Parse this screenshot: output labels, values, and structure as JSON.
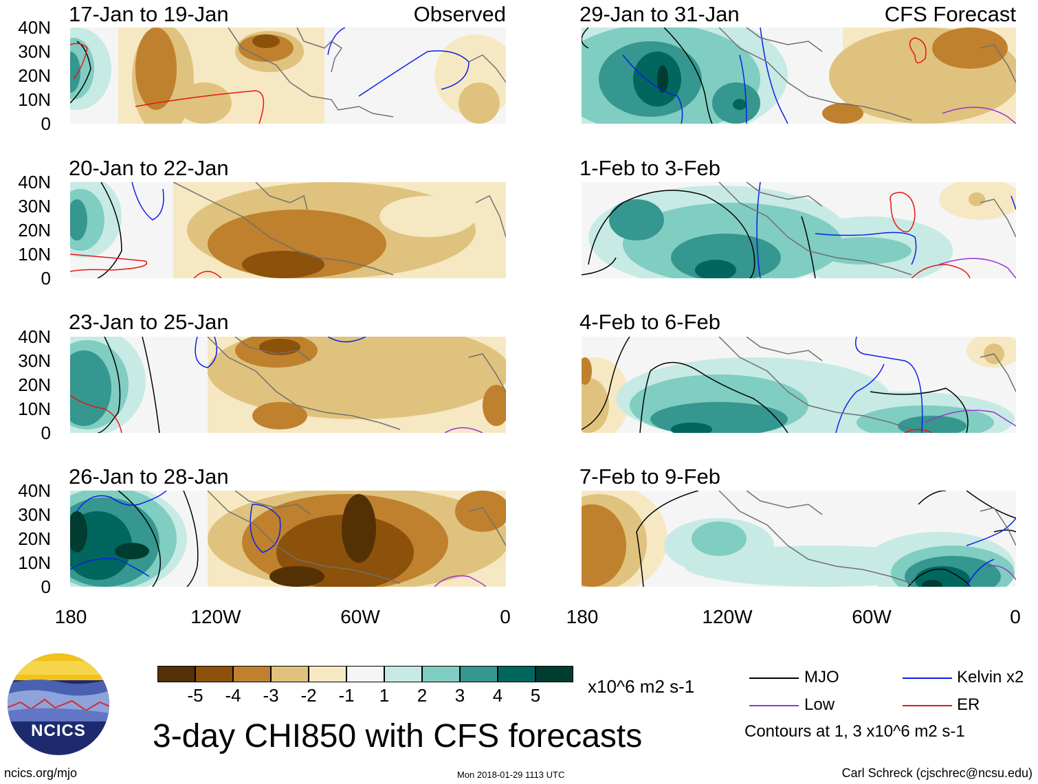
{
  "colors": {
    "dry5": "#543005",
    "dry4": "#8c510a",
    "dry3": "#bf812d",
    "dry2": "#dfc27d",
    "dry1": "#f6e8c3",
    "neutral": "#f5f5f5",
    "wet1": "#c7eae5",
    "wet2": "#80cdc1",
    "wet3": "#35978f",
    "wet4": "#01665e",
    "wet5": "#003c30",
    "mjo": "#000000",
    "kelvin": "#0a1ee6",
    "low": "#9b32d2",
    "er": "#e61414",
    "coast": "#707070"
  },
  "panels": {
    "left": [
      {
        "title": "17-Jan to 19-Jan",
        "right_label": "Observed"
      },
      {
        "title": "20-Jan to 22-Jan"
      },
      {
        "title": "23-Jan to 25-Jan"
      },
      {
        "title": "26-Jan to 28-Jan"
      }
    ],
    "right": [
      {
        "title": "29-Jan to 31-Jan",
        "right_label": "CFS Forecast"
      },
      {
        "title": "1-Feb to 3-Feb"
      },
      {
        "title": "4-Feb to 6-Feb"
      },
      {
        "title": "7-Feb to 9-Feb"
      }
    ]
  },
  "axes": {
    "lat_ticks": [
      "40N",
      "30N",
      "20N",
      "10N",
      "0"
    ],
    "lon_ticks": [
      "180",
      "120W",
      "60W",
      "0"
    ]
  },
  "colorbar": {
    "labels": [
      "-5",
      "-4",
      "-3",
      "-2",
      "-1",
      "1",
      "2",
      "3",
      "4",
      "5"
    ],
    "units": "x10^6 m2 s-1"
  },
  "legend": {
    "mjo": "MJO",
    "kelvin": "Kelvin x2",
    "low": "Low",
    "er": "ER",
    "contours_note": "Contours at 1, 3 x10^6 m2 s-1"
  },
  "title": "3-day CHI850 with CFS forecasts",
  "logo_text": "NCICS",
  "footer": {
    "url": "ncics.org/mjo",
    "timestamp": "Mon 2018-01-29 1113 UTC",
    "author": "Carl Schreck (cjschrec@ncsu.edu)"
  }
}
